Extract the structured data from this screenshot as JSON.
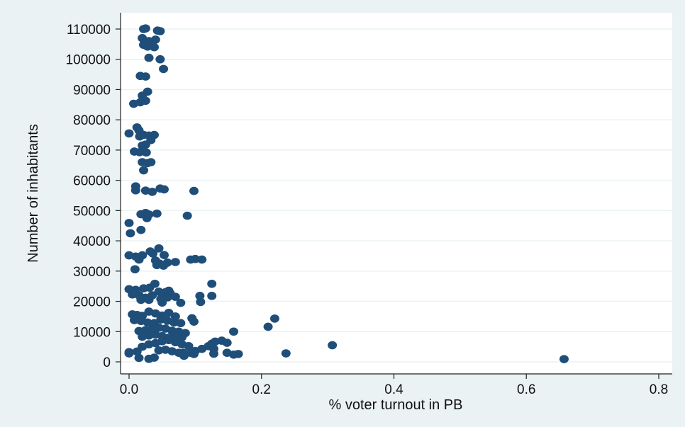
{
  "chart_data": {
    "type": "scatter",
    "title": "",
    "xlabel": "% voter turnout in PB",
    "ylabel": "Number of inhabitants",
    "xlim": [
      0,
      0.8
    ],
    "ylim": [
      0,
      110000
    ],
    "x_ticks": [
      0,
      0.2,
      0.4,
      0.6,
      0.8
    ],
    "x_tick_labels": [
      "0.0",
      "0.2",
      "0.4",
      "0.6",
      "0.8"
    ],
    "y_ticks": [
      0,
      10000,
      20000,
      30000,
      40000,
      50000,
      60000,
      70000,
      80000,
      90000,
      100000,
      110000
    ],
    "y_tick_labels": [
      "0",
      "10000",
      "20000",
      "30000",
      "40000",
      "50000",
      "60000",
      "70000",
      "80000",
      "90000",
      "100000",
      "110000"
    ],
    "grid": "horizontal",
    "marker_color": "#1f4e79",
    "background_color": "#eaf2f3",
    "plot_area_color": "#ffffff",
    "gridline_color": "#eaf2f3",
    "series": [
      {
        "points": [
          [
            0.022,
            110000
          ],
          [
            0.025,
            110200
          ],
          [
            0.043,
            109500
          ],
          [
            0.047,
            109300
          ],
          [
            0.02,
            107000
          ],
          [
            0.03,
            106000
          ],
          [
            0.04,
            106500
          ],
          [
            0.032,
            105500
          ],
          [
            0.022,
            104800
          ],
          [
            0.028,
            104200
          ],
          [
            0.038,
            104000
          ],
          [
            0.035,
            105000
          ],
          [
            0.03,
            100500
          ],
          [
            0.047,
            100000
          ],
          [
            0.052,
            96800
          ],
          [
            0.017,
            94500
          ],
          [
            0.025,
            94300
          ],
          [
            0.028,
            89300
          ],
          [
            0.02,
            88000
          ],
          [
            0.025,
            86300
          ],
          [
            0.017,
            85800
          ],
          [
            0.007,
            85300
          ],
          [
            0.012,
            77500
          ],
          [
            0.0,
            75500
          ],
          [
            0.015,
            76500
          ],
          [
            0.016,
            74500
          ],
          [
            0.022,
            75000
          ],
          [
            0.03,
            74800
          ],
          [
            0.038,
            75000
          ],
          [
            0.033,
            73300
          ],
          [
            0.02,
            71500
          ],
          [
            0.025,
            71800
          ],
          [
            0.008,
            69500
          ],
          [
            0.016,
            69300
          ],
          [
            0.026,
            69200
          ],
          [
            0.02,
            66000
          ],
          [
            0.028,
            65700
          ],
          [
            0.033,
            66000
          ],
          [
            0.022,
            63300
          ],
          [
            0.01,
            58000
          ],
          [
            0.01,
            56700
          ],
          [
            0.025,
            56600
          ],
          [
            0.035,
            56200
          ],
          [
            0.047,
            57300
          ],
          [
            0.053,
            57000
          ],
          [
            0.098,
            56500
          ],
          [
            0.018,
            48800
          ],
          [
            0.025,
            49200
          ],
          [
            0.03,
            48700
          ],
          [
            0.042,
            49000
          ],
          [
            0.027,
            47500
          ],
          [
            0.088,
            48300
          ],
          [
            0.0,
            45900
          ],
          [
            0.018,
            43600
          ],
          [
            0.002,
            42500
          ],
          [
            0.0,
            35200
          ],
          [
            0.01,
            34800
          ],
          [
            0.02,
            35200
          ],
          [
            0.032,
            36500
          ],
          [
            0.036,
            35800
          ],
          [
            0.045,
            37500
          ],
          [
            0.053,
            35300
          ],
          [
            0.04,
            33500
          ],
          [
            0.046,
            32500
          ],
          [
            0.058,
            32800
          ],
          [
            0.07,
            33000
          ],
          [
            0.042,
            32000
          ],
          [
            0.052,
            31800
          ],
          [
            0.093,
            33800
          ],
          [
            0.1,
            34000
          ],
          [
            0.11,
            33800
          ],
          [
            0.015,
            33800
          ],
          [
            0.009,
            30600
          ],
          [
            0.0,
            24000
          ],
          [
            0.01,
            23800
          ],
          [
            0.022,
            24300
          ],
          [
            0.031,
            24500
          ],
          [
            0.039,
            25800
          ],
          [
            0.045,
            23200
          ],
          [
            0.055,
            23000
          ],
          [
            0.062,
            22700
          ],
          [
            0.07,
            21500
          ],
          [
            0.005,
            22300
          ],
          [
            0.015,
            22000
          ],
          [
            0.025,
            21200
          ],
          [
            0.035,
            22000
          ],
          [
            0.03,
            20500
          ],
          [
            0.048,
            20800
          ],
          [
            0.058,
            21300
          ],
          [
            0.05,
            19600
          ],
          [
            0.078,
            19500
          ],
          [
            0.107,
            21800
          ],
          [
            0.108,
            19800
          ],
          [
            0.125,
            25800
          ],
          [
            0.125,
            21800
          ],
          [
            0.018,
            20500
          ],
          [
            0.06,
            23500
          ],
          [
            0.005,
            15700
          ],
          [
            0.012,
            15500
          ],
          [
            0.02,
            15200
          ],
          [
            0.03,
            16600
          ],
          [
            0.04,
            16000
          ],
          [
            0.05,
            15300
          ],
          [
            0.06,
            16200
          ],
          [
            0.07,
            15000
          ],
          [
            0.008,
            13800
          ],
          [
            0.018,
            13500
          ],
          [
            0.028,
            13000
          ],
          [
            0.038,
            12800
          ],
          [
            0.048,
            14000
          ],
          [
            0.058,
            13600
          ],
          [
            0.068,
            13000
          ],
          [
            0.078,
            12800
          ],
          [
            0.095,
            14400
          ],
          [
            0.098,
            13300
          ],
          [
            0.21,
            11600
          ],
          [
            0.22,
            14300
          ],
          [
            0.015,
            10200
          ],
          [
            0.025,
            10500
          ],
          [
            0.035,
            10800
          ],
          [
            0.045,
            11300
          ],
          [
            0.055,
            11000
          ],
          [
            0.065,
            10300
          ],
          [
            0.075,
            10000
          ],
          [
            0.085,
            9500
          ],
          [
            0.02,
            8300
          ],
          [
            0.03,
            8700
          ],
          [
            0.04,
            9000
          ],
          [
            0.05,
            8500
          ],
          [
            0.06,
            8000
          ],
          [
            0.07,
            8800
          ],
          [
            0.08,
            8200
          ],
          [
            0.158,
            10000
          ],
          [
            0.02,
            5000
          ],
          [
            0.03,
            5800
          ],
          [
            0.04,
            6200
          ],
          [
            0.05,
            6800
          ],
          [
            0.06,
            7200
          ],
          [
            0.07,
            6500
          ],
          [
            0.08,
            5800
          ],
          [
            0.09,
            5200
          ],
          [
            0.1,
            3600
          ],
          [
            0.11,
            4300
          ],
          [
            0.12,
            5200
          ],
          [
            0.125,
            6000
          ],
          [
            0.13,
            6700
          ],
          [
            0.14,
            7000
          ],
          [
            0.148,
            6300
          ],
          [
            0.128,
            4300
          ],
          [
            0.045,
            3800
          ],
          [
            0.055,
            4000
          ],
          [
            0.065,
            3500
          ],
          [
            0.075,
            3000
          ],
          [
            0.082,
            3000
          ],
          [
            0.083,
            2000
          ],
          [
            0.093,
            3000
          ],
          [
            0.098,
            2600
          ],
          [
            0.128,
            2700
          ],
          [
            0.148,
            3000
          ],
          [
            0.158,
            2400
          ],
          [
            0.165,
            2600
          ],
          [
            0.0,
            3200
          ],
          [
            0.0,
            2800
          ],
          [
            0.012,
            3400
          ],
          [
            0.015,
            1300
          ],
          [
            0.03,
            1000
          ],
          [
            0.038,
            1400
          ],
          [
            0.237,
            2800
          ],
          [
            0.307,
            5500
          ],
          [
            0.657,
            900
          ]
        ]
      }
    ]
  }
}
